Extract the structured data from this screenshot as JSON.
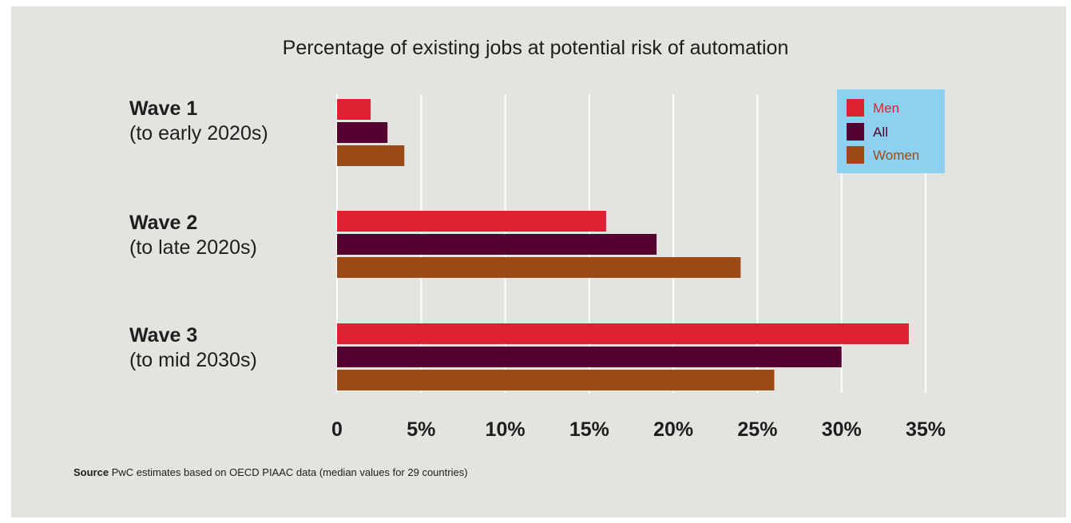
{
  "chart_data": {
    "type": "bar",
    "orientation": "horizontal",
    "title": "Percentage of existing jobs at potential risk of automation",
    "categories": [
      {
        "name": "Wave 1",
        "sub": "(to early 2020s)"
      },
      {
        "name": "Wave 2",
        "sub": "(to late 2020s)"
      },
      {
        "name": "Wave 3",
        "sub": "(to mid 2030s)"
      }
    ],
    "series": [
      {
        "name": "Men",
        "color": "#dd2233",
        "values": [
          2,
          16,
          34
        ]
      },
      {
        "name": "All",
        "color": "#560030",
        "values": [
          3,
          19,
          30
        ]
      },
      {
        "name": "Women",
        "color": "#9e4a14",
        "values": [
          4,
          24,
          26
        ]
      }
    ],
    "xlim": [
      0,
      35
    ],
    "xticks": [
      0,
      5,
      10,
      15,
      20,
      25,
      30,
      35
    ],
    "tick_labels": [
      "0",
      "5%",
      "10%",
      "15%",
      "20%",
      "25%",
      "30%",
      "35%"
    ],
    "grid": true,
    "legend_position": "top-right",
    "source_label": "Source",
    "source_text": "PwC estimates based on OECD PIAAC data (median values for 29 countries)"
  }
}
